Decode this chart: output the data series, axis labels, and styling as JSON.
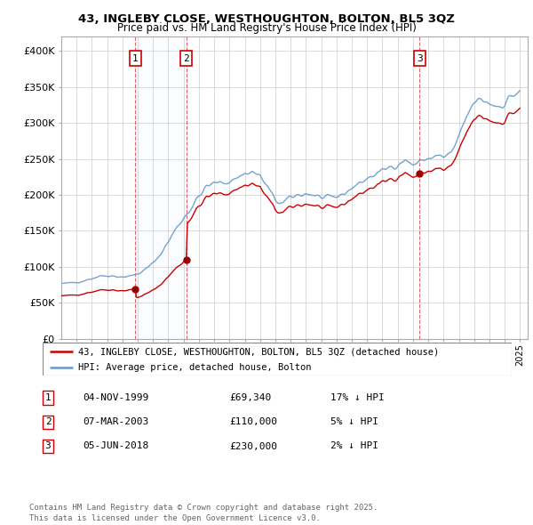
{
  "title_line1": "43, INGLEBY CLOSE, WESTHOUGHTON, BOLTON, BL5 3QZ",
  "title_line2": "Price paid vs. HM Land Registry's House Price Index (HPI)",
  "legend_label1": "43, INGLEBY CLOSE, WESTHOUGHTON, BOLTON, BL5 3QZ (detached house)",
  "legend_label2": "HPI: Average price, detached house, Bolton",
  "footer": "Contains HM Land Registry data © Crown copyright and database right 2025.\nThis data is licensed under the Open Government Licence v3.0.",
  "transactions": [
    {
      "num": "1",
      "date": "04-NOV-1999",
      "price": "£69,340",
      "hpi_diff": "17% ↓ HPI",
      "year": 1999.84,
      "price_val": 69340
    },
    {
      "num": "2",
      "date": "07-MAR-2003",
      "price": "£110,000",
      "hpi_diff": "5% ↓ HPI",
      "year": 2003.18,
      "price_val": 110000
    },
    {
      "num": "3",
      "date": "05-JUN-2018",
      "price": "£230,000",
      "hpi_diff": "2% ↓ HPI",
      "year": 2018.43,
      "price_val": 230000
    }
  ],
  "ylim": [
    0,
    420000
  ],
  "xlim_start": 1995.0,
  "xlim_end": 2025.5,
  "color_property": "#cc0000",
  "color_hpi": "#6699cc",
  "background_color": "#ffffff",
  "grid_color": "#cccccc",
  "span_color": "#ddeeff"
}
